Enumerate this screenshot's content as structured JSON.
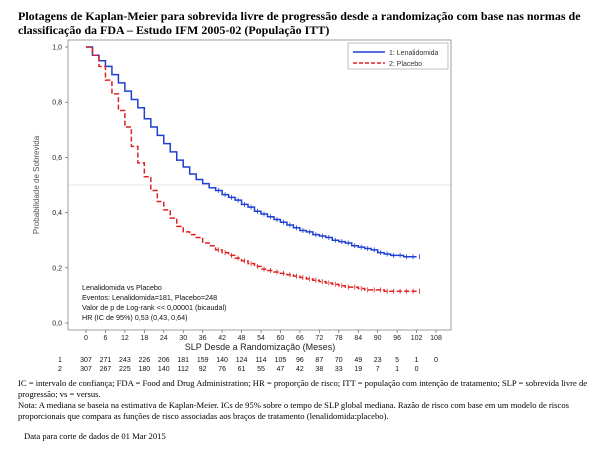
{
  "title": "Plotagens de Kaplan-Meier para sobrevida livre de progressão desde a randomização com base nas normas de classificação da FDA – Estudo IFM 2005-02 (População ITT)",
  "colors": {
    "lenalidomida": "#1f3fd0",
    "placebo": "#e02020",
    "grid": "#d9d9d9",
    "frame": "#888888"
  },
  "chart_data": {
    "type": "line",
    "title": "",
    "xlabel": "SLP Desde a Randomização (Meses)",
    "ylabel": "Probabilidade de Sobrevida",
    "xlim": [
      -6,
      108
    ],
    "ylim": [
      0,
      1
    ],
    "x_ticks": [
      "0",
      "6",
      "12",
      "18",
      "24",
      "30",
      "36",
      "42",
      "48",
      "54",
      "60",
      "66",
      "72",
      "78",
      "84",
      "90",
      "96",
      "102",
      "108"
    ],
    "y_ticks": [
      "0,0",
      "0,2",
      "0,4",
      "0,6",
      "0,8",
      "1,0"
    ],
    "reference_line": 0.5,
    "legend_position": "top-right",
    "series": [
      {
        "name": "1: Lenalidomida",
        "x": [
          0,
          2,
          4,
          6,
          8,
          10,
          12,
          14,
          16,
          18,
          20,
          22,
          24,
          26,
          28,
          30,
          32,
          34,
          36,
          38,
          40,
          42,
          44,
          46,
          48,
          50,
          52,
          54,
          56,
          58,
          60,
          62,
          64,
          66,
          68,
          70,
          72,
          74,
          76,
          78,
          80,
          82,
          84,
          86,
          88,
          90,
          92,
          94,
          96,
          98,
          100,
          102
        ],
        "y": [
          1.0,
          0.97,
          0.95,
          0.93,
          0.9,
          0.87,
          0.84,
          0.81,
          0.78,
          0.74,
          0.71,
          0.68,
          0.65,
          0.62,
          0.59,
          0.565,
          0.54,
          0.52,
          0.505,
          0.49,
          0.48,
          0.465,
          0.455,
          0.445,
          0.43,
          0.42,
          0.405,
          0.395,
          0.385,
          0.375,
          0.365,
          0.355,
          0.345,
          0.335,
          0.33,
          0.32,
          0.315,
          0.31,
          0.3,
          0.295,
          0.29,
          0.28,
          0.275,
          0.27,
          0.265,
          0.255,
          0.25,
          0.245,
          0.245,
          0.24,
          0.24,
          0.24
        ]
      },
      {
        "name": "2: Placebo",
        "x": [
          0,
          2,
          4,
          6,
          8,
          10,
          12,
          14,
          16,
          18,
          20,
          22,
          24,
          26,
          28,
          30,
          32,
          34,
          36,
          38,
          40,
          42,
          44,
          46,
          48,
          50,
          52,
          54,
          56,
          58,
          60,
          62,
          64,
          66,
          68,
          70,
          72,
          74,
          76,
          78,
          80,
          82,
          84,
          86,
          88,
          90,
          92,
          94,
          96,
          98,
          100,
          102
        ],
        "y": [
          1.0,
          0.97,
          0.93,
          0.88,
          0.83,
          0.77,
          0.71,
          0.64,
          0.58,
          0.53,
          0.48,
          0.44,
          0.41,
          0.38,
          0.35,
          0.33,
          0.32,
          0.31,
          0.29,
          0.28,
          0.265,
          0.255,
          0.245,
          0.235,
          0.225,
          0.215,
          0.205,
          0.195,
          0.19,
          0.185,
          0.18,
          0.175,
          0.17,
          0.165,
          0.16,
          0.155,
          0.15,
          0.145,
          0.14,
          0.135,
          0.13,
          0.13,
          0.125,
          0.12,
          0.12,
          0.12,
          0.115,
          0.115,
          0.115,
          0.115,
          0.115,
          0.115
        ]
      }
    ],
    "annotations": [
      "Lenalidomida vs Placebo",
      "Eventos: Lenalidomida=181, Placebo=248",
      "Valor de p de Log-rank << 0,00001 (bicaudal)",
      "HR (IC de 95%) 0,53 (0,43, 0,64)"
    ],
    "risk_table": {
      "labels": [
        "1",
        "2"
      ],
      "rows": [
        [
          "307",
          "271",
          "243",
          "226",
          "206",
          "181",
          "159",
          "140",
          "124",
          "114",
          "105",
          "96",
          "87",
          "70",
          "49",
          "23",
          "5",
          "1",
          "0"
        ],
        [
          "307",
          "267",
          "225",
          "180",
          "140",
          "112",
          "92",
          "76",
          "61",
          "55",
          "47",
          "42",
          "38",
          "33",
          "19",
          "7",
          "1",
          "0",
          ""
        ]
      ]
    }
  },
  "footnotes": [
    "IC = intervalo de confiança; FDA = Food and Drug Administration; HR = proporção de risco; ITT = população com intenção de tratamento; SLP = sobrevida livre de progressão; vs = versus.",
    "Nota: A mediana se baseia na estimativa de Kaplan-Meier. ICs de 95% sobre o tempo de SLP global mediana. Razão de risco com base em um modelo de riscos proporcionais que compara as funções de risco associadas aos braços de tratamento (lenalidomida:placebo).",
    "Data para corte de dados de 01 Mar 2015"
  ]
}
